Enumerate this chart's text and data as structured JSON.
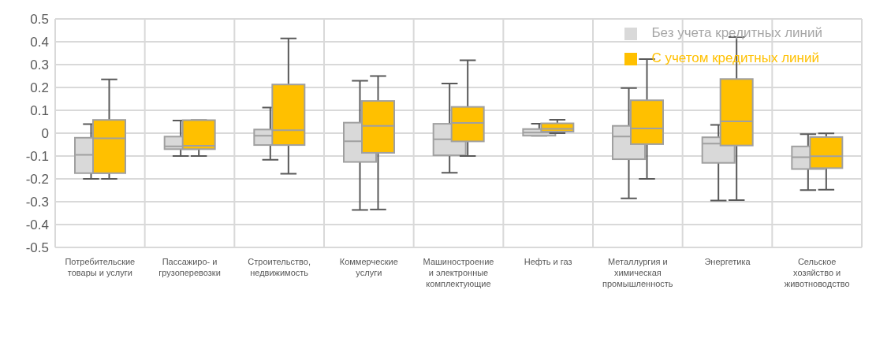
{
  "chart_data": {
    "type": "box",
    "categories": [
      "Потребительские товары и услуги",
      "Пассажиро- и грузоперевозки",
      "Строительство, недвижимость",
      "Коммерческие услуги",
      "Машиностроение и электронные комплектующие",
      "Нефть и газ",
      "Металлургия и химическая промышленность",
      "Энергетика",
      "Сельское хозяйство и животноводство"
    ],
    "series": [
      {
        "name": "Без учета кредитных линий",
        "color": "#d9d9d9",
        "boxes": [
          {
            "low": -0.2,
            "q1": -0.175,
            "median": -0.095,
            "q3": -0.02,
            "high": 0.04
          },
          {
            "low": -0.1,
            "q1": -0.07,
            "median": -0.058,
            "q3": -0.015,
            "high": 0.055
          },
          {
            "low": -0.116,
            "q1": -0.052,
            "median": -0.011,
            "q3": 0.016,
            "high": 0.112
          },
          {
            "low": -0.336,
            "q1": -0.126,
            "median": -0.035,
            "q3": 0.046,
            "high": 0.229
          },
          {
            "low": -0.173,
            "q1": -0.097,
            "median": -0.027,
            "q3": 0.041,
            "high": 0.217
          },
          {
            "low": -0.011,
            "q1": -0.011,
            "median": 0.003,
            "q3": 0.018,
            "high": 0.041
          },
          {
            "low": -0.285,
            "q1": -0.114,
            "median": -0.015,
            "q3": 0.032,
            "high": 0.197
          },
          {
            "low": -0.295,
            "q1": -0.13,
            "median": -0.046,
            "q3": -0.018,
            "high": 0.036
          },
          {
            "low": -0.249,
            "q1": -0.157,
            "median": -0.105,
            "q3": -0.058,
            "high": -0.004
          }
        ]
      },
      {
        "name": "С учетом кредитных линий",
        "color": "#ffc000",
        "boxes": [
          {
            "low": -0.2,
            "q1": -0.175,
            "median": -0.022,
            "q3": 0.058,
            "high": 0.235
          },
          {
            "low": -0.1,
            "q1": -0.07,
            "median": -0.055,
            "q3": 0.057,
            "high": 0.057
          },
          {
            "low": -0.178,
            "q1": -0.052,
            "median": 0.013,
            "q3": 0.213,
            "high": 0.415
          },
          {
            "low": -0.334,
            "q1": -0.086,
            "median": 0.032,
            "q3": 0.141,
            "high": 0.25
          },
          {
            "low": -0.1,
            "q1": -0.036,
            "median": 0.045,
            "q3": 0.115,
            "high": 0.319
          },
          {
            "low": 0.0,
            "q1": 0.007,
            "median": 0.019,
            "q3": 0.043,
            "high": 0.059
          },
          {
            "low": -0.2,
            "q1": -0.048,
            "median": 0.021,
            "q3": 0.144,
            "high": 0.324
          },
          {
            "low": -0.293,
            "q1": -0.054,
            "median": 0.052,
            "q3": 0.237,
            "high": 0.421
          },
          {
            "low": -0.247,
            "q1": -0.153,
            "median": -0.101,
            "q3": -0.017,
            "high": -0.001
          }
        ]
      }
    ],
    "ylim": [
      -0.5,
      0.5
    ],
    "yticks": [
      -0.5,
      -0.4,
      -0.3,
      -0.2,
      -0.1,
      0,
      0.1,
      0.2,
      0.3,
      0.4,
      0.5
    ],
    "grid": true,
    "legend": "top right"
  }
}
